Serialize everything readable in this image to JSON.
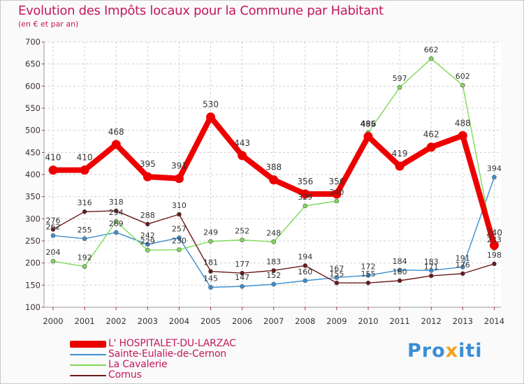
{
  "title": "Evolution des Impôts locaux pour la Commune par Habitant",
  "subtitle": "(en € et par an)",
  "brand": {
    "part1": "Pro",
    "part2": "x",
    "part3": "iti"
  },
  "chart_data": {
    "type": "line",
    "title": "Evolution des Impôts locaux pour la Commune par Habitant",
    "ylabel": "(en € et par an)",
    "xlabel": "",
    "categories": [
      "2000",
      "2001",
      "2002",
      "2003",
      "2004",
      "2005",
      "2006",
      "2007",
      "2008",
      "2009",
      "2010",
      "2011",
      "2012",
      "2013",
      "2014"
    ],
    "ylim": [
      100,
      700
    ],
    "yticks": [
      100,
      150,
      200,
      250,
      300,
      350,
      400,
      450,
      500,
      550,
      600,
      650,
      700
    ],
    "legend_position": "bottom-left",
    "series": [
      {
        "name": "L' HOSPITALET-DU-LARZAC",
        "color": "#ee0000",
        "thick": true,
        "values": [
          410,
          410,
          468,
          395,
          391,
          530,
          443,
          388,
          356,
          356,
          486,
          419,
          462,
          488,
          240
        ],
        "labels": [
          "410",
          "410",
          "468",
          "395",
          "391",
          "530",
          "443",
          "388",
          "356",
          "356",
          "486",
          "419",
          "462",
          "488",
          "240"
        ]
      },
      {
        "name": "Sainte-Eulalie-de-Cernon",
        "color": "#3b8fd0",
        "thick": false,
        "values": [
          262,
          255,
          269,
          242,
          257,
          145,
          147,
          152,
          160,
          167,
          172,
          184,
          183,
          191,
          394
        ],
        "labels": [
          "262",
          "255",
          "269",
          "242",
          "257",
          "145",
          "147",
          "152",
          "160",
          "167",
          "172",
          "184",
          "183",
          "191",
          "394"
        ]
      },
      {
        "name": "La Cavalerie",
        "color": "#7ed957",
        "thick": false,
        "values": [
          204,
          192,
          294,
          229,
          230,
          249,
          252,
          248,
          329,
          340,
          495,
          597,
          662,
          602,
          233
        ],
        "labels": [
          "204",
          "192",
          "294",
          "229",
          "230",
          "249",
          "252",
          "248",
          "329",
          "340",
          "495",
          "597",
          "662",
          "602",
          "233"
        ]
      },
      {
        "name": "Cornus",
        "color": "#6b1a1a",
        "thick": false,
        "values": [
          276,
          316,
          318,
          288,
          310,
          181,
          177,
          183,
          194,
          155,
          155,
          160,
          171,
          176,
          198
        ],
        "labels": [
          "276",
          "316",
          "318",
          "288",
          "310",
          "181",
          "177",
          "183",
          "194",
          "155",
          "155",
          "160",
          "171",
          "176",
          "198"
        ]
      }
    ]
  }
}
